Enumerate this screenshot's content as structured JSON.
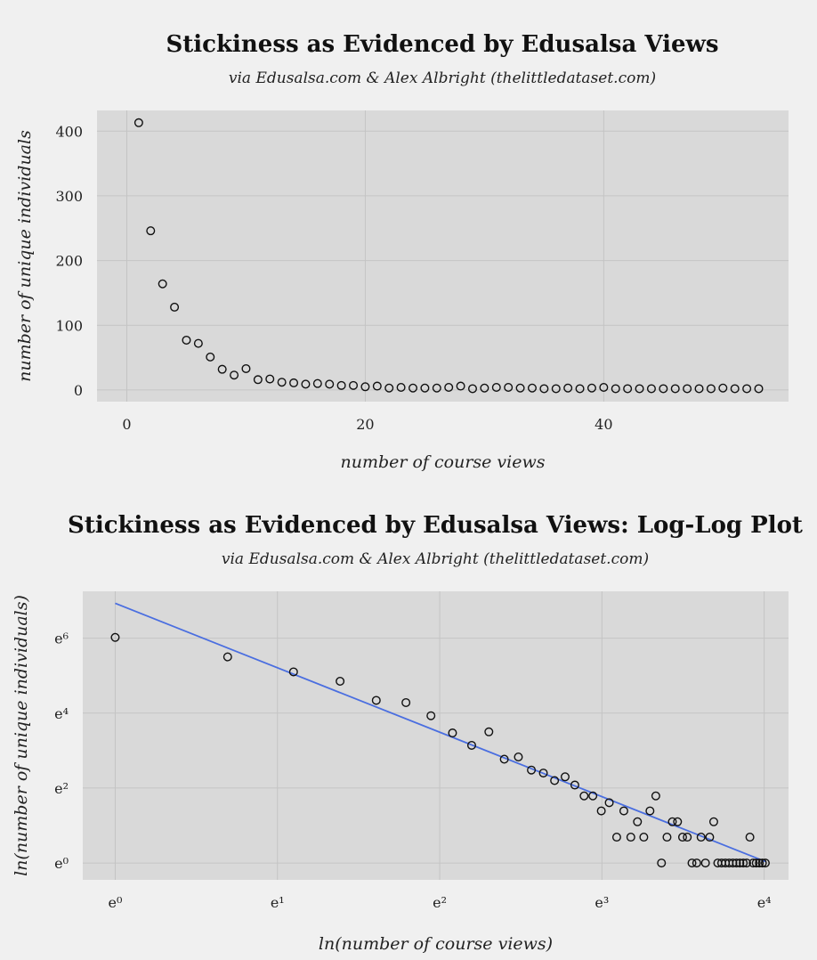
{
  "chart_data": [
    {
      "type": "scatter",
      "title": "Stickiness as Evidenced by Edusalsa Views",
      "subtitle": "via Edusalsa.com & Alex Albright (thelittledataset.com)",
      "xlabel": "number of course views",
      "ylabel": "number of unique individuals",
      "xlim": [
        -2.5,
        55.5
      ],
      "ylim": [
        -18,
        432
      ],
      "xticks": [
        0,
        20,
        40
      ],
      "yticks": [
        0,
        100,
        200,
        300,
        400
      ],
      "grid": true,
      "x": [
        1,
        2,
        3,
        4,
        5,
        6,
        7,
        8,
        9,
        10,
        11,
        12,
        13,
        14,
        15,
        16,
        17,
        18,
        19,
        20,
        21,
        22,
        23,
        24,
        25,
        26,
        27,
        28,
        29,
        30,
        31,
        32,
        33,
        34,
        35,
        36,
        37,
        38,
        39,
        40,
        41,
        42,
        43,
        44,
        45,
        46,
        47,
        48,
        49,
        50,
        51,
        52,
        53
      ],
      "y": [
        413,
        246,
        164,
        128,
        77,
        72,
        51,
        32,
        23,
        33,
        16,
        17,
        12,
        11,
        9,
        10,
        9,
        7,
        7,
        5,
        6,
        3,
        4,
        3,
        3,
        3,
        4,
        6,
        2,
        3,
        4,
        4,
        3,
        3,
        2,
        2,
        3,
        2,
        3,
        4,
        2,
        2,
        2,
        2,
        2,
        2,
        2,
        2,
        2,
        3,
        2,
        2,
        2
      ]
    },
    {
      "type": "scatter",
      "title": "Stickiness as Evidenced by Edusalsa Views: Log-Log Plot",
      "subtitle": "via Edusalsa.com & Alex Albright (thelittledataset.com)",
      "xlabel": "ln(number of course views)",
      "ylabel": "ln(number of unique individuals)",
      "xlim": [
        -0.2,
        4.15
      ],
      "ylim": [
        -0.45,
        7.25
      ],
      "xticks": [
        0,
        1,
        2,
        3,
        4
      ],
      "yticks": [
        0,
        2,
        4,
        6
      ],
      "xtick_labels": [
        "e⁰",
        "e¹",
        "e²",
        "e³",
        "e⁴"
      ],
      "ytick_labels": [
        "e⁰",
        "e²",
        "e⁴",
        "e⁶"
      ],
      "grid": true,
      "x": [
        0,
        0.693,
        1.099,
        1.386,
        1.609,
        1.792,
        1.946,
        2.079,
        2.197,
        2.303,
        2.398,
        2.485,
        2.565,
        2.639,
        2.708,
        2.773,
        2.833,
        2.89,
        2.944,
        2.996,
        3.045,
        3.091,
        3.135,
        3.178,
        3.219,
        3.258,
        3.296,
        3.332,
        3.367,
        3.401,
        3.434,
        3.466,
        3.497,
        3.526,
        3.555,
        3.584,
        3.611,
        3.638,
        3.664,
        3.689,
        3.714,
        3.738,
        3.761,
        3.784,
        3.807,
        3.829,
        3.85,
        3.871,
        3.892,
        3.912,
        3.932,
        3.951,
        3.97,
        3.989,
        4.007
      ],
      "y": [
        6.02,
        5.5,
        5.1,
        4.85,
        4.34,
        4.28,
        3.93,
        3.47,
        3.14,
        3.5,
        2.77,
        2.83,
        2.48,
        2.4,
        2.2,
        2.3,
        2.08,
        1.79,
        1.79,
        1.39,
        1.61,
        0.69,
        1.39,
        0.69,
        1.1,
        0.69,
        1.39,
        1.79,
        0,
        0.69,
        1.1,
        1.1,
        0.69,
        0.69,
        0,
        0,
        0.69,
        0,
        0.69,
        1.1,
        0,
        0,
        0,
        0,
        0,
        0,
        0,
        0,
        0,
        0.69,
        0,
        0,
        0,
        0,
        0
      ],
      "fit": {
        "type": "linear",
        "intercept": 6.93,
        "slope": -1.72
      }
    }
  ]
}
